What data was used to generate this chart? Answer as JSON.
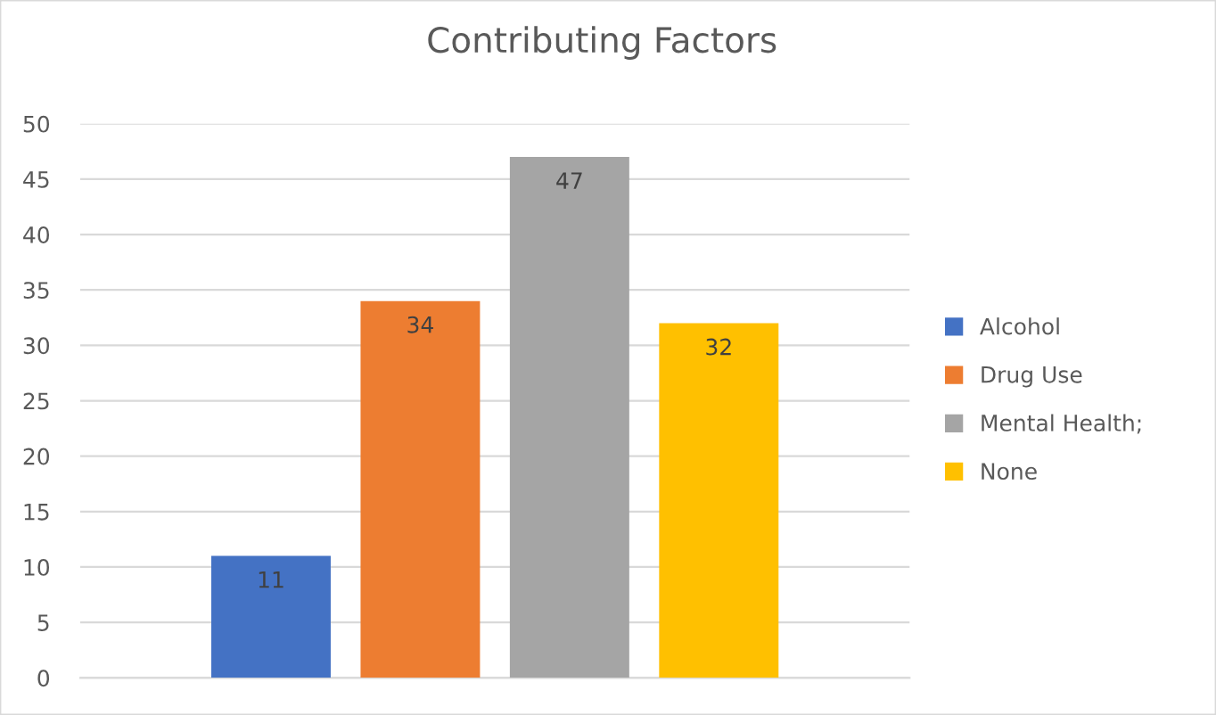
{
  "chart_data": {
    "type": "bar",
    "title": "Contributing Factors",
    "categories": [
      null
    ],
    "series": [
      {
        "name": "Alcohol",
        "color": "#4472c4",
        "values": [
          11
        ]
      },
      {
        "name": "Drug Use",
        "color": "#ed7d31",
        "values": [
          34
        ]
      },
      {
        "name": "Mental Health;",
        "color": "#a5a5a5",
        "values": [
          47
        ]
      },
      {
        "name": "None",
        "color": "#ffc000",
        "values": [
          32
        ]
      }
    ],
    "ylim": [
      0,
      50
    ],
    "yticks": [
      0,
      5,
      10,
      15,
      20,
      25,
      30,
      35,
      40,
      45,
      50
    ],
    "grid": "y",
    "legend": "right",
    "data_labels": true
  }
}
